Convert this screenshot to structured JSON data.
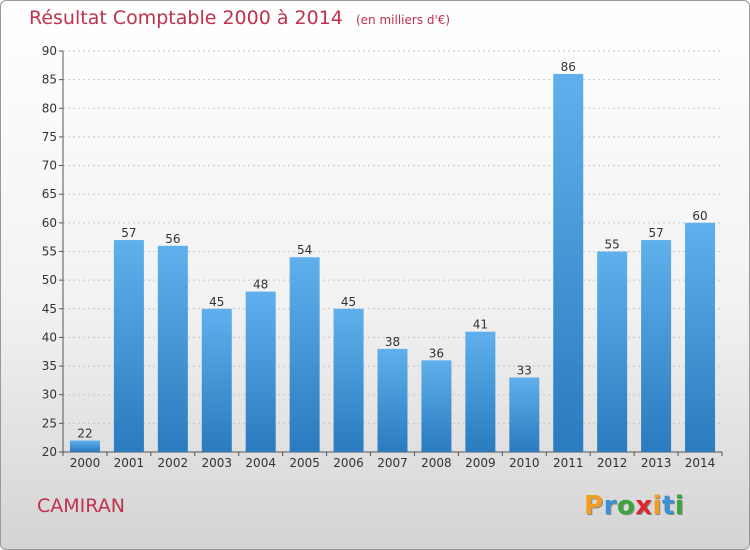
{
  "title": "Résultat Comptable 2000 à 2014",
  "subtitle": "(en milliers d'€)",
  "commune": "CAMIRAN",
  "logo": {
    "letters": [
      "P",
      "r",
      "o",
      "x",
      "i",
      "t",
      "i"
    ],
    "colors": [
      "#f39c1f",
      "#3a8fd6",
      "#3aa53a",
      "#e0262e",
      "#f39c1f",
      "#3a8fd6",
      "#3aa53a"
    ]
  },
  "colors": {
    "bar_top": "#5fb0ec",
    "bar_bottom": "#2a7bbf",
    "title": "#c0314c"
  },
  "chart_data": {
    "type": "bar",
    "categories": [
      "2000",
      "2001",
      "2002",
      "2003",
      "2004",
      "2005",
      "2006",
      "2007",
      "2008",
      "2009",
      "2010",
      "2011",
      "2012",
      "2013",
      "2014"
    ],
    "values": [
      22,
      57,
      56,
      45,
      48,
      54,
      45,
      38,
      36,
      41,
      33,
      86,
      55,
      57,
      60
    ],
    "title": "Résultat Comptable 2000 à 2014",
    "ylim": [
      20,
      90
    ],
    "yticks": [
      20,
      25,
      30,
      35,
      40,
      45,
      50,
      55,
      60,
      65,
      70,
      75,
      80,
      85,
      90
    ],
    "grid": true,
    "data_labels": true
  }
}
